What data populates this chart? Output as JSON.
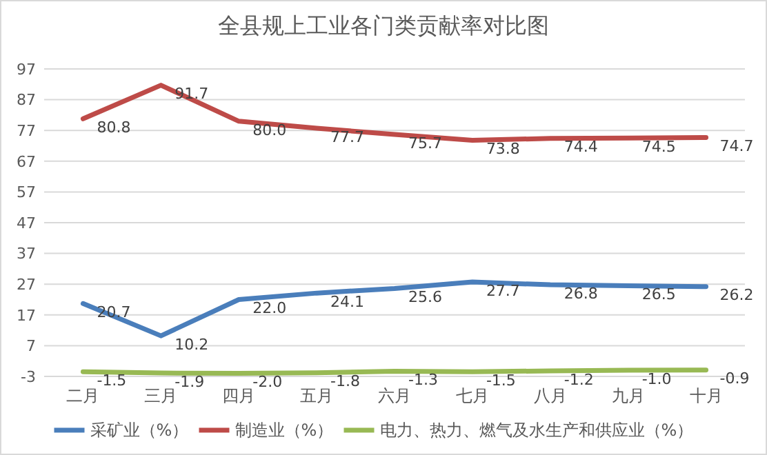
{
  "chart_data": {
    "type": "line",
    "title": "全县规上工业各门类贡献率对比图",
    "categories": [
      "二月",
      "三月",
      "四月",
      "五月",
      "六月",
      "七月",
      "八月",
      "九月",
      "十月"
    ],
    "series": [
      {
        "name": "采矿业（%）",
        "color": "#4a7ebb",
        "values": [
          20.7,
          10.2,
          22.0,
          24.1,
          25.6,
          27.7,
          26.8,
          26.5,
          26.2
        ],
        "value_labels": [
          "20.7",
          "10.2",
          "22.0",
          "24.1",
          "25.6",
          "27.7",
          "26.8",
          "26.5",
          "26.2"
        ]
      },
      {
        "name": "制造业（%）",
        "color": "#be4b48",
        "values": [
          80.8,
          91.7,
          80.0,
          77.7,
          75.7,
          73.8,
          74.4,
          74.5,
          74.7
        ],
        "value_labels": [
          "80.8",
          "91.7",
          "80.0",
          "77.7",
          "75.7",
          "73.8",
          "74.4",
          "74.5",
          "74.7"
        ]
      },
      {
        "name": "电力、热力、燃气及水生产和供应业（%）",
        "color": "#98b954",
        "values": [
          -1.5,
          -1.9,
          -2.0,
          -1.8,
          -1.3,
          -1.5,
          -1.2,
          -1.0,
          -0.9
        ],
        "value_labels": [
          "-1.5",
          "-1.9",
          "-2.0",
          "-1.8",
          "-1.3",
          "-1.5",
          "-1.2",
          "-1.0",
          "-0.9"
        ]
      }
    ],
    "ylim": [
      -3,
      97
    ],
    "yticks": [
      -3,
      7,
      17,
      27,
      37,
      47,
      57,
      67,
      77,
      87,
      97
    ],
    "grid": "y",
    "legend": "bottom",
    "marker": "none",
    "line_style": "solid"
  }
}
